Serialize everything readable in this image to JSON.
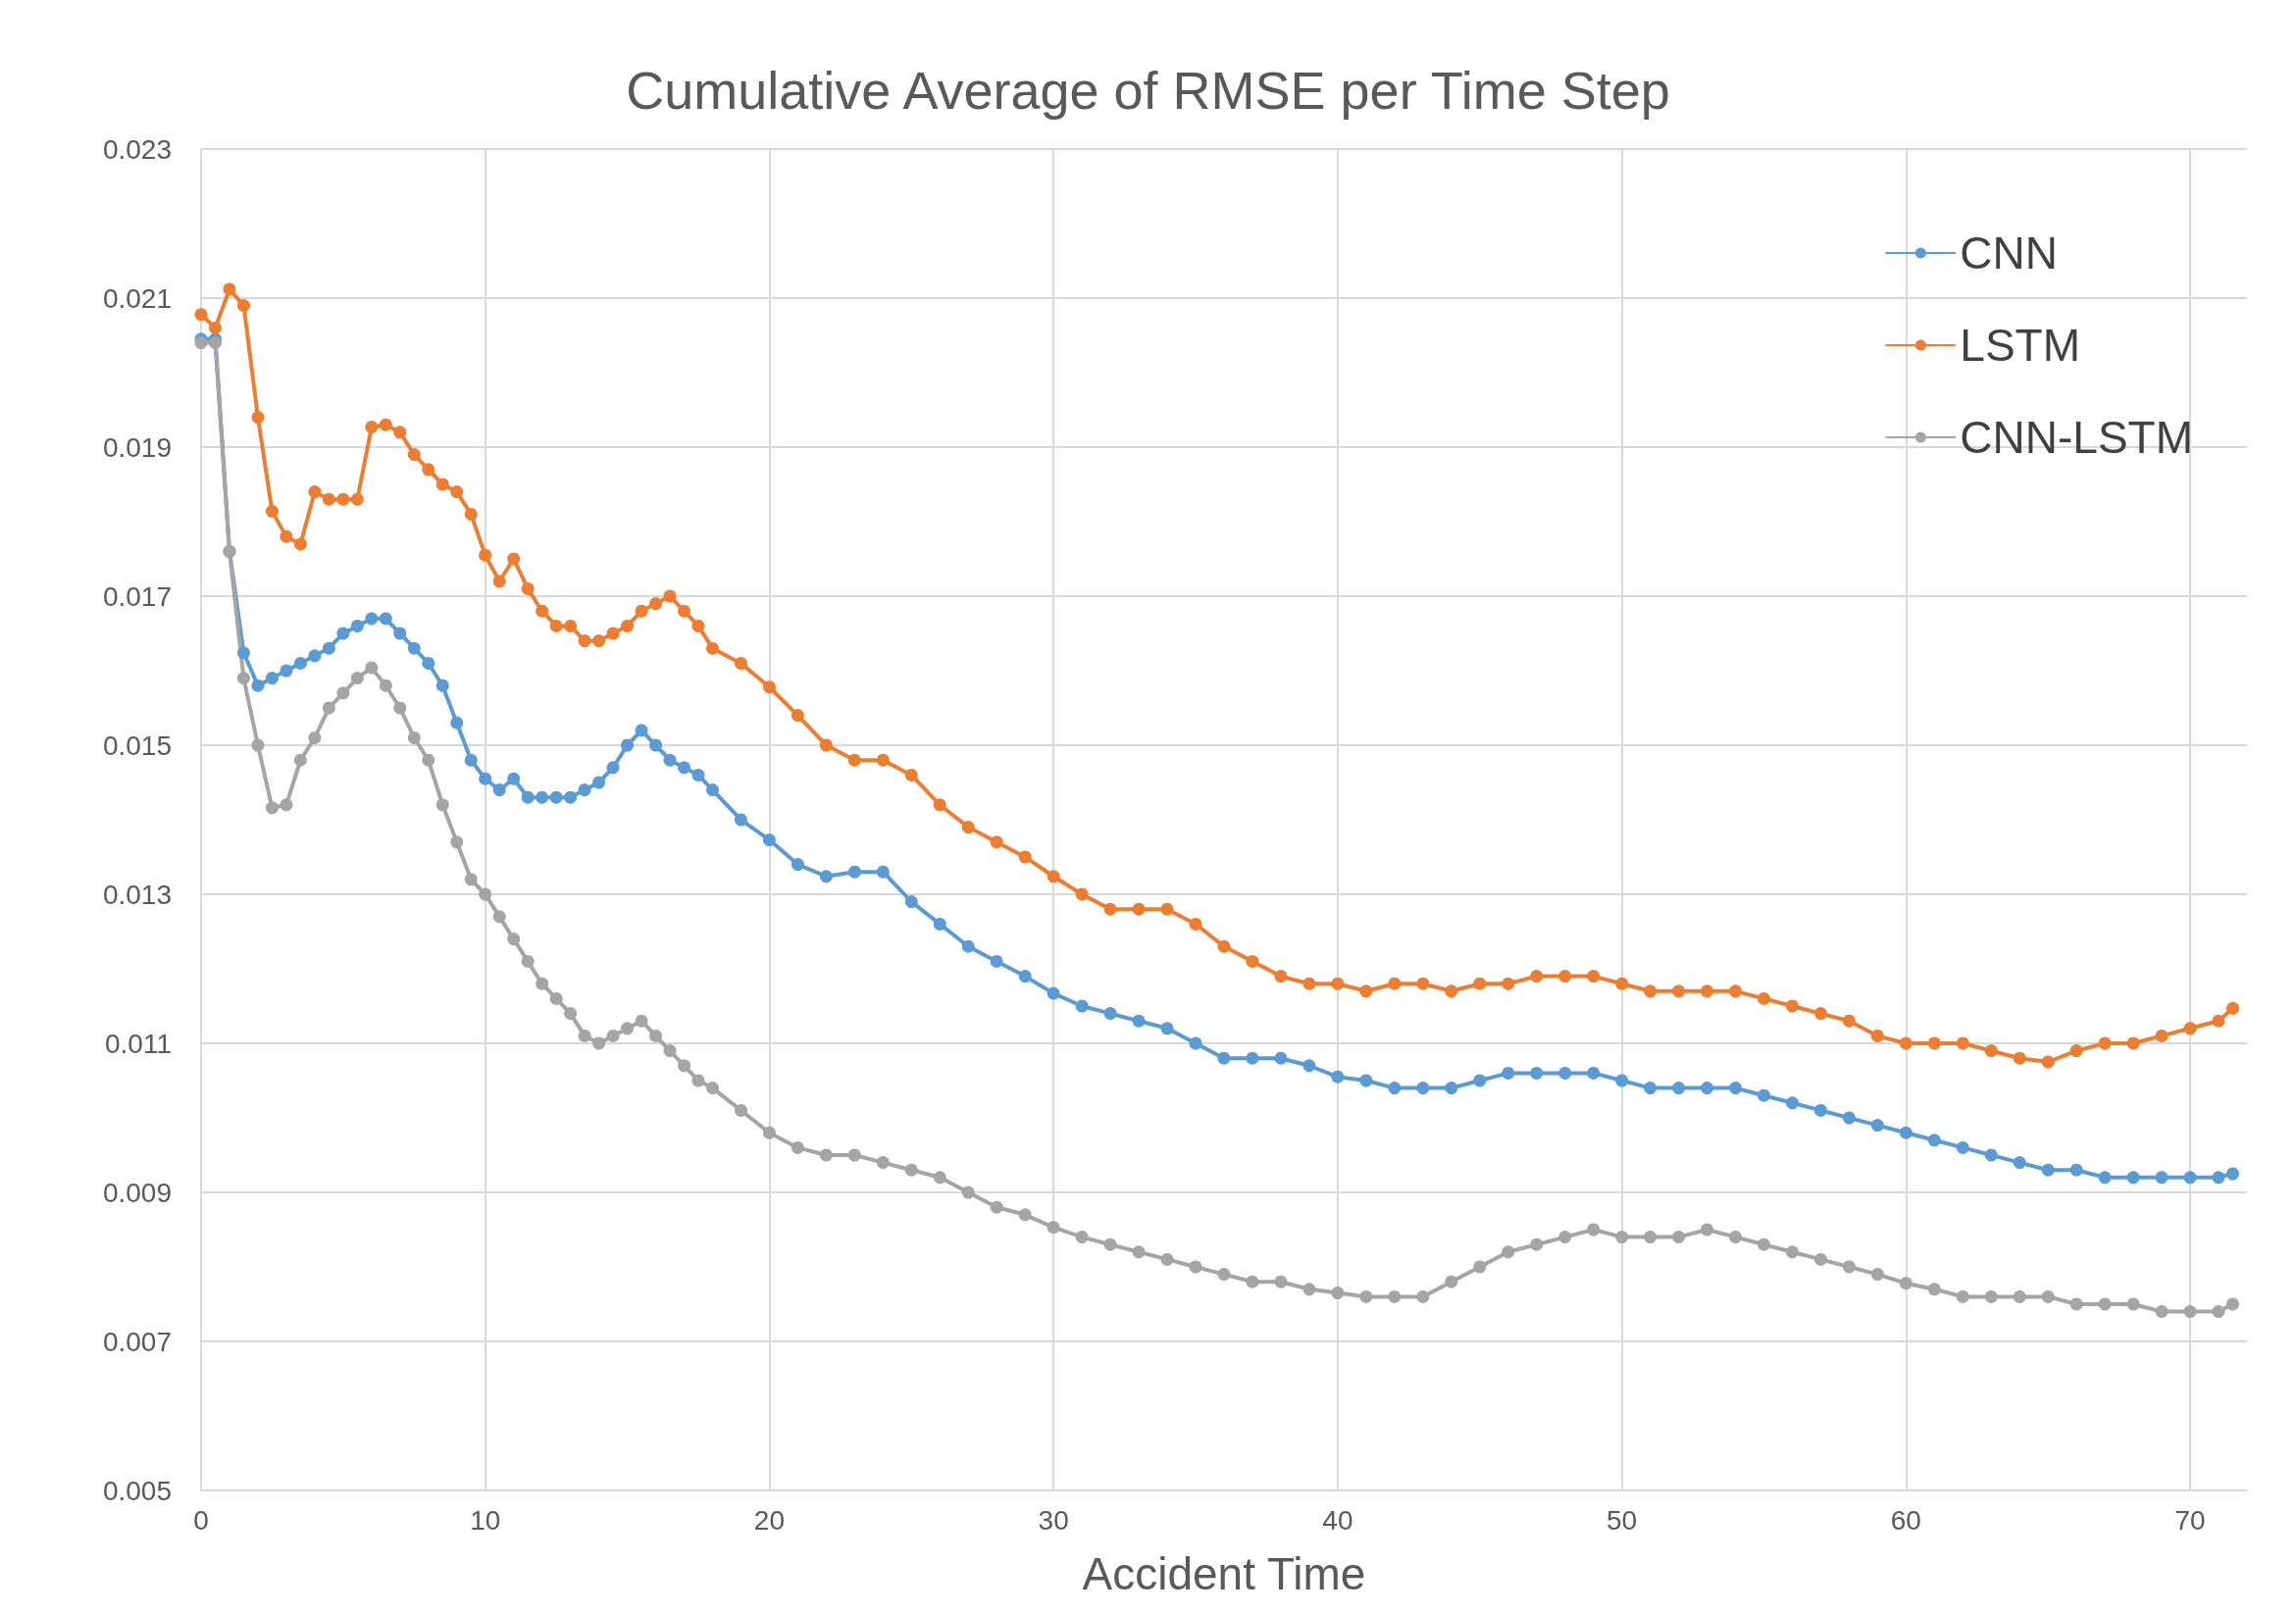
{
  "chart_data": {
    "type": "line",
    "title": "Cumulative Average of RMSE per Time Step",
    "xlabel": "Accident Time",
    "x": [
      0,
      0.5,
      1,
      1.5,
      2,
      2.5,
      3,
      3.5,
      4,
      4.5,
      5,
      5.5,
      6,
      6.5,
      7,
      7.5,
      8,
      8.5,
      9,
      9.5,
      10,
      10.5,
      11,
      11.5,
      12,
      12.5,
      13,
      13.5,
      14,
      14.5,
      15,
      15.5,
      16,
      16.5,
      17,
      17.5,
      18,
      19,
      20,
      21,
      22,
      23,
      24,
      25,
      26,
      27,
      28,
      29,
      30,
      31,
      32,
      33,
      34,
      35,
      36,
      37,
      38,
      39,
      40,
      41,
      42,
      43,
      44,
      45,
      46,
      47,
      48,
      49,
      50,
      51,
      52,
      53,
      54,
      55,
      56,
      57,
      58,
      59,
      60,
      61,
      62,
      63,
      64,
      65,
      66,
      67,
      68,
      69,
      70,
      71,
      71.5
    ],
    "series": [
      {
        "name": "CNN",
        "color": "#5b9bd5",
        "values": [
          0.02045,
          0.02045,
          0.0176,
          0.01624,
          0.0158,
          0.0159,
          0.016,
          0.0161,
          0.0162,
          0.0163,
          0.0165,
          0.0166,
          0.0167,
          0.0167,
          0.0165,
          0.0163,
          0.0161,
          0.0158,
          0.0153,
          0.0148,
          0.01455,
          0.0144,
          0.01455,
          0.0143,
          0.0143,
          0.0143,
          0.0143,
          0.0144,
          0.0145,
          0.0147,
          0.015,
          0.0152,
          0.015,
          0.0148,
          0.0147,
          0.0146,
          0.0144,
          0.014,
          0.01373,
          0.0134,
          0.01324,
          0.0133,
          0.0133,
          0.0129,
          0.0126,
          0.0123,
          0.0121,
          0.0119,
          0.01167,
          0.0115,
          0.0114,
          0.0113,
          0.0112,
          0.011,
          0.0108,
          0.0108,
          0.0108,
          0.0107,
          0.01055,
          0.0105,
          0.0104,
          0.0104,
          0.0104,
          0.0105,
          0.0106,
          0.0106,
          0.0106,
          0.0106,
          0.0105,
          0.0104,
          0.0104,
          0.0104,
          0.0104,
          0.0103,
          0.0102,
          0.0101,
          0.01,
          0.0099,
          0.0098,
          0.0097,
          0.0096,
          0.0095,
          0.0094,
          0.0093,
          0.0093,
          0.0092,
          0.0092,
          0.0092,
          0.0092,
          0.0092,
          0.00925
        ]
      },
      {
        "name": "LSTM",
        "color": "#ed7d31",
        "values": [
          0.02078,
          0.0206,
          0.02112,
          0.0209,
          0.0194,
          0.01814,
          0.0178,
          0.0177,
          0.0184,
          0.0183,
          0.0183,
          0.0183,
          0.01927,
          0.0193,
          0.0192,
          0.0189,
          0.0187,
          0.0185,
          0.0184,
          0.0181,
          0.01755,
          0.0172,
          0.0175,
          0.0171,
          0.0168,
          0.0166,
          0.0166,
          0.0164,
          0.0164,
          0.0165,
          0.0166,
          0.0168,
          0.0169,
          0.017,
          0.0168,
          0.0166,
          0.0163,
          0.0161,
          0.01578,
          0.0154,
          0.015,
          0.0148,
          0.0148,
          0.0146,
          0.0142,
          0.0139,
          0.0137,
          0.0135,
          0.01324,
          0.013,
          0.0128,
          0.0128,
          0.0128,
          0.0126,
          0.0123,
          0.0121,
          0.0119,
          0.0118,
          0.0118,
          0.0117,
          0.0118,
          0.0118,
          0.0117,
          0.0118,
          0.0118,
          0.0119,
          0.0119,
          0.0119,
          0.0118,
          0.0117,
          0.0117,
          0.0117,
          0.0117,
          0.0116,
          0.0115,
          0.0114,
          0.0113,
          0.0111,
          0.011,
          0.011,
          0.011,
          0.0109,
          0.0108,
          0.01075,
          0.0109,
          0.011,
          0.011,
          0.0111,
          0.0112,
          0.0113,
          0.01147
        ]
      },
      {
        "name": "CNN-LSTM",
        "color": "#a5a5a5",
        "values": [
          0.0204,
          0.0204,
          0.0176,
          0.0159,
          0.015,
          0.01416,
          0.0142,
          0.0148,
          0.0151,
          0.0155,
          0.0157,
          0.0159,
          0.01604,
          0.0158,
          0.0155,
          0.0151,
          0.0148,
          0.0142,
          0.0137,
          0.0132,
          0.013,
          0.0127,
          0.0124,
          0.0121,
          0.0118,
          0.0116,
          0.0114,
          0.0111,
          0.011,
          0.0111,
          0.0112,
          0.0113,
          0.0111,
          0.0109,
          0.0107,
          0.0105,
          0.0104,
          0.0101,
          0.0098,
          0.0096,
          0.0095,
          0.0095,
          0.0094,
          0.0093,
          0.0092,
          0.009,
          0.0088,
          0.0087,
          0.00853,
          0.0084,
          0.0083,
          0.0082,
          0.0081,
          0.008,
          0.0079,
          0.0078,
          0.0078,
          0.0077,
          0.00765,
          0.0076,
          0.0076,
          0.0076,
          0.0078,
          0.008,
          0.0082,
          0.0083,
          0.0084,
          0.0085,
          0.0084,
          0.0084,
          0.0084,
          0.0085,
          0.0084,
          0.0083,
          0.0082,
          0.0081,
          0.008,
          0.0079,
          0.00778,
          0.0077,
          0.0076,
          0.0076,
          0.0076,
          0.0076,
          0.0075,
          0.0075,
          0.0075,
          0.0074,
          0.0074,
          0.0074,
          0.0075
        ]
      }
    ],
    "xlim": [
      0,
      72
    ],
    "xticks": [
      0,
      10,
      20,
      30,
      40,
      50,
      60,
      70
    ],
    "ylim": [
      0.005,
      0.023
    ],
    "yticks": [
      0.005,
      0.007,
      0.009,
      0.011,
      0.013,
      0.015,
      0.017,
      0.019,
      0.021,
      0.023
    ],
    "grid": true,
    "legend": "top right",
    "marker": "circle",
    "line_style": "solid"
  }
}
